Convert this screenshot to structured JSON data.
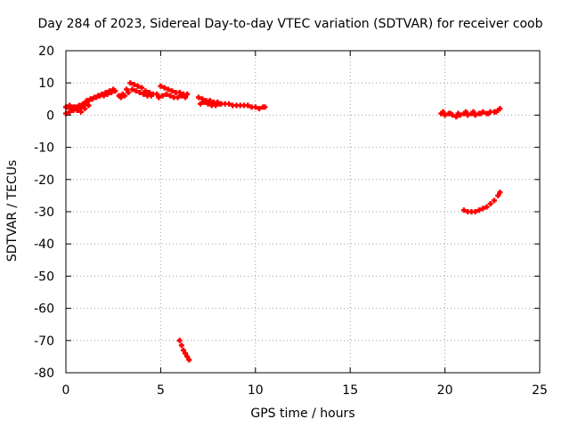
{
  "chart_data": {
    "type": "scatter",
    "title": "Day 284 of 2023, Sidereal Day-to-day VTEC variation (SDTVAR) for receiver coob",
    "xlabel": "GPS time / hours",
    "ylabel": "SDTVAR / TECUs",
    "xlim": [
      0,
      25
    ],
    "ylim": [
      -80,
      20
    ],
    "xticks": [
      0,
      5,
      10,
      15,
      20,
      25
    ],
    "yticks": [
      20,
      10,
      0,
      -10,
      -20,
      -30,
      -40,
      -50,
      -60,
      -70,
      -80
    ],
    "grid": true,
    "legend": "none",
    "marker": "plus",
    "color": "#ff0000",
    "series": [
      {
        "name": "SDTVAR",
        "x": [
          0.0,
          0.2,
          0.4,
          0.6,
          0.8,
          1.0,
          1.2,
          1.4,
          1.6,
          1.8,
          2.0,
          2.2,
          2.4,
          2.6,
          0.1,
          0.3,
          0.5,
          0.7,
          0.9,
          1.1,
          1.3,
          1.5,
          1.7,
          1.9,
          2.1,
          2.3,
          2.5,
          0.0,
          0.2,
          0.4,
          0.6,
          0.8,
          1.0,
          1.2,
          2.8,
          3.0,
          3.2,
          3.4,
          3.6,
          3.8,
          4.0,
          4.2,
          4.4,
          4.6,
          2.9,
          3.1,
          3.3,
          3.5,
          3.7,
          3.9,
          4.1,
          4.3,
          4.5,
          4.8,
          5.0,
          5.2,
          5.4,
          5.6,
          5.8,
          6.0,
          6.2,
          6.4,
          4.9,
          5.1,
          5.3,
          5.5,
          5.7,
          5.9,
          6.1,
          6.3,
          7.0,
          7.2,
          7.4,
          7.6,
          7.8,
          8.0,
          8.2,
          8.4,
          8.6,
          8.8,
          9.0,
          9.2,
          9.4,
          7.1,
          7.3,
          7.5,
          7.7,
          7.9,
          8.1,
          9.6,
          9.8,
          10.0,
          10.2,
          10.4,
          10.5,
          19.8,
          20.0,
          20.2,
          20.4,
          20.6,
          20.8,
          21.0,
          21.2,
          21.4,
          21.6,
          21.8,
          22.0,
          22.2,
          22.4,
          22.6,
          22.8,
          22.9,
          19.9,
          20.3,
          20.7,
          21.1,
          21.5,
          21.9,
          22.3,
          22.7,
          21.0,
          21.2,
          21.4,
          21.6,
          21.8,
          22.0,
          22.2,
          22.4,
          22.6,
          22.8,
          22.9,
          6.0,
          6.1,
          6.2,
          6.3,
          6.4,
          6.5
        ],
        "y": [
          0.5,
          1.0,
          1.5,
          2.0,
          2.5,
          3.5,
          4.5,
          5.0,
          5.5,
          6.0,
          6.0,
          6.5,
          7.0,
          7.5,
          2.5,
          2.0,
          2.5,
          3.0,
          3.5,
          4.5,
          5.0,
          5.5,
          6.0,
          6.5,
          7.0,
          7.5,
          8.0,
          2.5,
          3.0,
          2.5,
          1.5,
          1.0,
          2.0,
          3.0,
          6.0,
          6.5,
          8.0,
          10.0,
          9.5,
          9.0,
          8.5,
          7.5,
          7.0,
          6.5,
          5.5,
          6.0,
          7.0,
          8.0,
          7.5,
          7.0,
          6.5,
          6.0,
          6.0,
          6.5,
          9.0,
          8.5,
          8.0,
          7.5,
          7.0,
          7.0,
          6.5,
          6.5,
          5.5,
          6.0,
          6.5,
          6.0,
          5.5,
          5.5,
          6.0,
          5.5,
          5.5,
          5.0,
          4.5,
          4.5,
          4.0,
          4.0,
          3.5,
          3.5,
          3.5,
          3.0,
          3.0,
          3.0,
          3.0,
          3.5,
          4.0,
          3.5,
          3.0,
          3.0,
          3.5,
          3.0,
          2.5,
          2.5,
          2.0,
          2.5,
          2.5,
          0.5,
          0.0,
          0.5,
          0.0,
          -0.5,
          0.0,
          0.5,
          0.0,
          0.5,
          0.0,
          0.5,
          1.0,
          0.5,
          1.0,
          1.0,
          1.5,
          2.0,
          1.0,
          0.5,
          0.5,
          1.0,
          1.0,
          0.5,
          0.5,
          1.0,
          -29.5,
          -30.0,
          -30.0,
          -30.0,
          -29.5,
          -29.0,
          -28.5,
          -27.5,
          -26.5,
          -25.0,
          -24.0,
          -70.0,
          -71.5,
          -73.0,
          -74.0,
          -75.0,
          -76.0
        ]
      }
    ]
  }
}
